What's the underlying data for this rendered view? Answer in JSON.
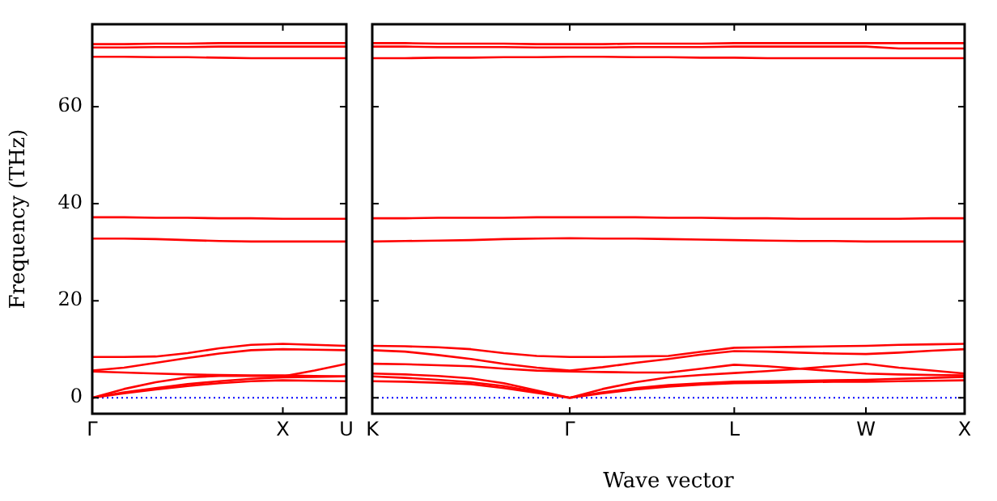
{
  "chart_data": [
    {
      "type": "line",
      "ylabel": "Frequency (THz)",
      "categories": [
        "Γ",
        null,
        null,
        null,
        null,
        null,
        "X",
        null,
        "U"
      ],
      "ylim": [
        -3.3,
        77
      ],
      "yticks": [
        0,
        20,
        40,
        60
      ],
      "legend": false,
      "marker": "none",
      "line_style": "solid",
      "ref_lines": [
        {
          "axis": "y",
          "value": 0,
          "color": "#0000ff",
          "line_style": "dotted"
        }
      ],
      "series": [
        {
          "color": "#ff0000",
          "values": [
            0,
            0.9,
            1.7,
            2.4,
            3.0,
            3.4,
            3.6,
            3.5,
            3.4
          ]
        },
        {
          "color": "#ff0000",
          "values": [
            0,
            1.1,
            2.0,
            2.8,
            3.4,
            3.9,
            4.2,
            4.3,
            4.4
          ]
        },
        {
          "color": "#ff0000",
          "values": [
            0,
            1.8,
            3.2,
            4.2,
            4.5,
            4.5,
            4.4,
            5.6,
            7.0
          ]
        },
        {
          "color": "#ff0000",
          "values": [
            5.4,
            5.2,
            5.0,
            4.8,
            4.7,
            4.6,
            4.6,
            4.5,
            4.4
          ]
        },
        {
          "color": "#ff0000",
          "values": [
            5.6,
            6.2,
            7.2,
            8.2,
            9.1,
            9.8,
            10.0,
            9.9,
            9.8
          ]
        },
        {
          "color": "#ff0000",
          "values": [
            8.4,
            8.4,
            8.5,
            9.2,
            10.2,
            10.9,
            11.1,
            10.9,
            10.7
          ]
        },
        {
          "color": "#ff0000",
          "values": [
            32.8,
            32.8,
            32.7,
            32.5,
            32.3,
            32.2,
            32.2,
            32.2,
            32.2
          ]
        },
        {
          "color": "#ff0000",
          "values": [
            37.2,
            37.2,
            37.1,
            37.1,
            37.0,
            37.0,
            36.9,
            36.9,
            36.9
          ]
        },
        {
          "color": "#ff0000",
          "values": [
            70.3,
            70.3,
            70.2,
            70.2,
            70.1,
            70.0,
            70.0,
            70.0,
            70.0
          ]
        },
        {
          "color": "#ff0000",
          "values": [
            72.2,
            72.2,
            72.3,
            72.3,
            72.4,
            72.4,
            72.4,
            72.4,
            72.4
          ]
        },
        {
          "color": "#ff0000",
          "values": [
            72.9,
            72.9,
            73.0,
            73.0,
            73.1,
            73.1,
            73.1,
            73.1,
            73.1
          ]
        }
      ]
    },
    {
      "type": "line",
      "xlabel": "Wave vector",
      "categories": [
        "K",
        null,
        null,
        null,
        null,
        null,
        "Γ",
        null,
        null,
        null,
        null,
        "L",
        null,
        null,
        null,
        "W",
        null,
        null,
        "X"
      ],
      "ylim": [
        -3.3,
        77
      ],
      "yticks": [
        0,
        20,
        40,
        60
      ],
      "tick_labels": "x",
      "legend": false,
      "marker": "none",
      "line_style": "solid",
      "ref_lines": [
        {
          "axis": "y",
          "value": 0,
          "color": "#0000ff",
          "line_style": "dotted"
        }
      ],
      "series": [
        {
          "color": "#ff0000",
          "values": [
            3.4,
            3.3,
            3.1,
            2.8,
            2.0,
            1.0,
            0,
            0.9,
            1.7,
            2.3,
            2.7,
            3.0,
            3.1,
            3.2,
            3.3,
            3.3,
            3.4,
            3.5,
            3.6
          ]
        },
        {
          "color": "#ff0000",
          "values": [
            4.4,
            4.1,
            3.7,
            3.2,
            2.4,
            1.2,
            0,
            1.1,
            2.0,
            2.6,
            3.0,
            3.3,
            3.4,
            3.5,
            3.6,
            3.7,
            3.9,
            4.1,
            4.3
          ]
        },
        {
          "color": "#ff0000",
          "values": [
            5.0,
            4.8,
            4.5,
            4.0,
            3.0,
            1.5,
            0,
            1.8,
            3.2,
            4.2,
            4.7,
            5.1,
            5.5,
            6.0,
            6.5,
            7.0,
            6.2,
            5.6,
            5.0
          ]
        },
        {
          "color": "#ff0000",
          "values": [
            7.0,
            6.9,
            6.7,
            6.5,
            6.0,
            5.6,
            5.4,
            5.3,
            5.2,
            5.2,
            6.0,
            6.8,
            6.5,
            6.0,
            5.5,
            5.0,
            4.8,
            4.7,
            4.6
          ]
        },
        {
          "color": "#ff0000",
          "values": [
            9.8,
            9.5,
            8.8,
            8.0,
            7.0,
            6.2,
            5.6,
            6.3,
            7.2,
            8.0,
            8.9,
            9.6,
            9.5,
            9.3,
            9.1,
            9.0,
            9.3,
            9.7,
            10.0
          ]
        },
        {
          "color": "#ff0000",
          "values": [
            10.7,
            10.6,
            10.4,
            10.0,
            9.2,
            8.6,
            8.4,
            8.4,
            8.5,
            8.6,
            9.5,
            10.3,
            10.4,
            10.5,
            10.6,
            10.7,
            10.9,
            11.0,
            11.1
          ]
        },
        {
          "color": "#ff0000",
          "values": [
            32.2,
            32.3,
            32.4,
            32.5,
            32.7,
            32.8,
            32.9,
            32.8,
            32.8,
            32.7,
            32.6,
            32.5,
            32.4,
            32.3,
            32.3,
            32.2,
            32.2,
            32.2,
            32.2
          ]
        },
        {
          "color": "#ff0000",
          "values": [
            37.0,
            37.0,
            37.1,
            37.1,
            37.1,
            37.2,
            37.2,
            37.2,
            37.2,
            37.1,
            37.1,
            37.0,
            37.0,
            36.9,
            36.9,
            36.9,
            36.9,
            37.0,
            37.0
          ]
        },
        {
          "color": "#ff0000",
          "values": [
            70.0,
            70.0,
            70.1,
            70.1,
            70.2,
            70.2,
            70.3,
            70.3,
            70.2,
            70.2,
            70.1,
            70.1,
            70.0,
            70.0,
            70.0,
            70.0,
            70.0,
            70.0,
            70.0
          ]
        },
        {
          "color": "#ff0000",
          "values": [
            72.4,
            72.4,
            72.3,
            72.3,
            72.3,
            72.2,
            72.2,
            72.2,
            72.3,
            72.3,
            72.3,
            72.4,
            72.4,
            72.4,
            72.4,
            72.4,
            72.0,
            72.0,
            72.0
          ]
        },
        {
          "color": "#ff0000",
          "values": [
            73.1,
            73.1,
            73.0,
            73.0,
            73.0,
            72.9,
            72.9,
            72.9,
            73.0,
            73.0,
            73.0,
            73.1,
            73.1,
            73.1,
            73.1,
            73.1,
            73.1,
            73.1,
            73.1
          ]
        }
      ]
    }
  ]
}
